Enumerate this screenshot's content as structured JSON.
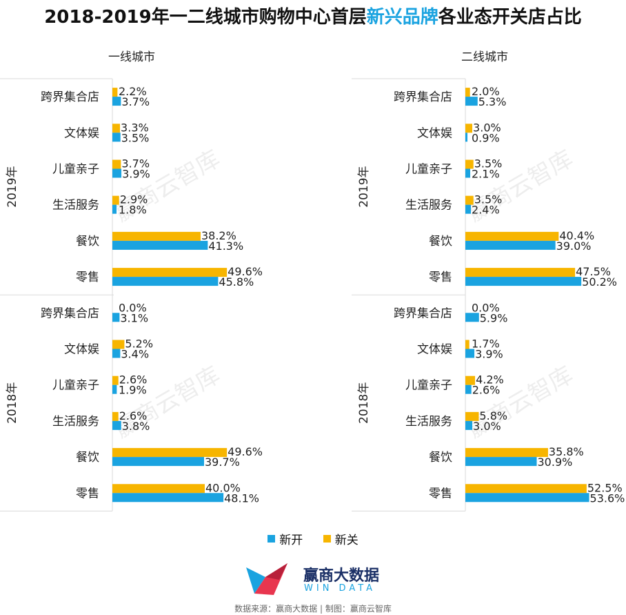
{
  "title_parts": {
    "before": "2018-2019年一二线城市购物中心首层",
    "highlight": "新兴品牌",
    "after": "各业态开关店占比"
  },
  "colors": {
    "open": "#1aa3e0",
    "close": "#f7b500",
    "highlight": "#1aa3e0",
    "grid": "#d9d9d9"
  },
  "legend": {
    "open": "新开",
    "close": "新关"
  },
  "logo": {
    "name": "赢商大数据",
    "sub": "WIN DATA"
  },
  "watermark": "赢商云智库",
  "source": "数据来源：赢商大数据 | 制图：赢商云智库",
  "chart_data": [
    {
      "type": "bar",
      "orientation": "horizontal",
      "title": "一线城市",
      "groups": [
        "2019年",
        "2018年"
      ],
      "categories": [
        "跨界集合店",
        "文体娱",
        "儿童亲子",
        "生活服务",
        "餐饮",
        "零售"
      ],
      "series": [
        {
          "name": "新关",
          "values_2019": [
            2.2,
            3.3,
            3.7,
            2.9,
            38.2,
            49.6
          ],
          "values_2018": [
            0.0,
            5.2,
            2.6,
            2.6,
            49.6,
            40.0
          ]
        },
        {
          "name": "新开",
          "values_2019": [
            3.7,
            3.5,
            3.9,
            1.8,
            41.3,
            45.8
          ],
          "values_2018": [
            3.1,
            3.4,
            1.9,
            3.8,
            39.7,
            48.1
          ]
        }
      ],
      "unit": "%"
    },
    {
      "type": "bar",
      "orientation": "horizontal",
      "title": "二线城市",
      "groups": [
        "2019年",
        "2018年"
      ],
      "categories": [
        "跨界集合店",
        "文体娱",
        "儿童亲子",
        "生活服务",
        "餐饮",
        "零售"
      ],
      "series": [
        {
          "name": "新关",
          "values_2019": [
            2.0,
            3.0,
            3.5,
            3.5,
            40.4,
            47.5
          ],
          "values_2018": [
            0.0,
            1.7,
            4.2,
            5.8,
            35.8,
            52.5
          ]
        },
        {
          "name": "新开",
          "values_2019": [
            5.3,
            0.9,
            2.1,
            2.4,
            39.0,
            50.2
          ],
          "values_2018": [
            5.9,
            3.9,
            2.6,
            3.0,
            30.9,
            53.6
          ]
        }
      ],
      "unit": "%"
    }
  ]
}
